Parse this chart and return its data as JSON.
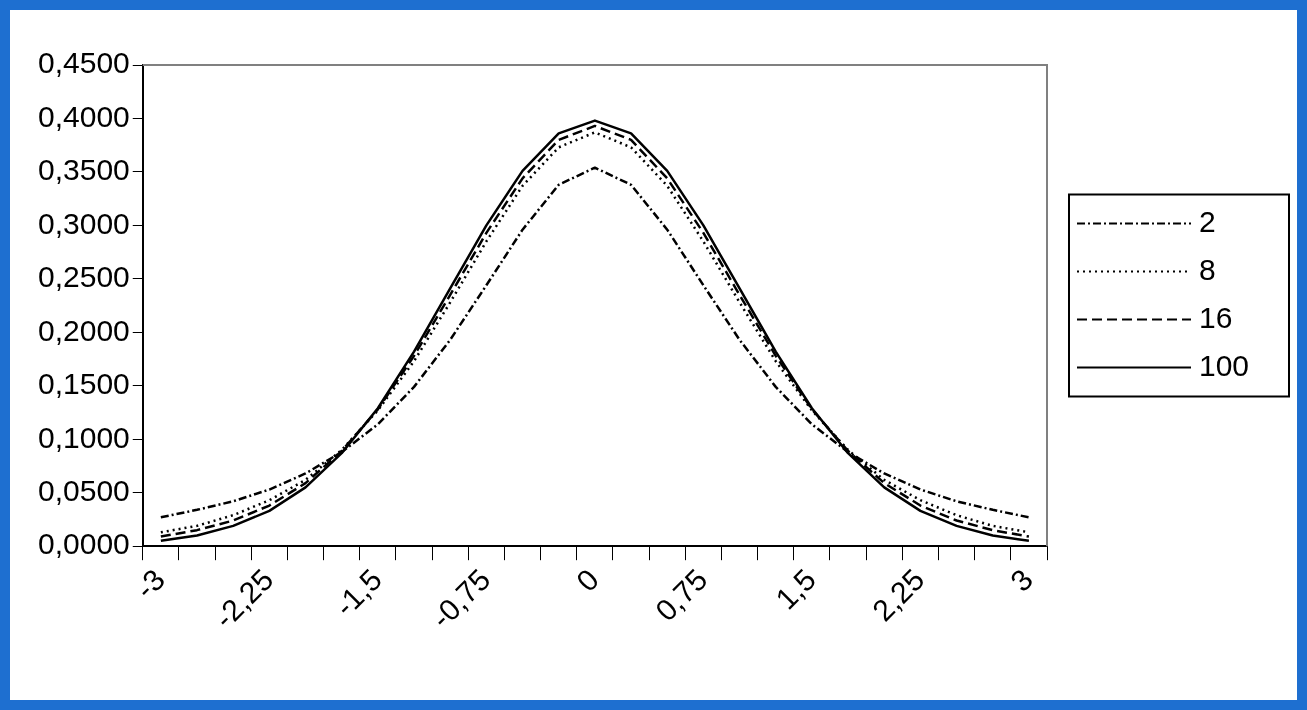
{
  "chart_data": {
    "type": "line",
    "categories": [
      "-3",
      null,
      null,
      "-2,25",
      null,
      null,
      "-1,5",
      null,
      null,
      "-0,75",
      null,
      null,
      "0",
      null,
      null,
      "0,75",
      null,
      null,
      "1,5",
      null,
      null,
      "2,25",
      null,
      null,
      "3"
    ],
    "series": [
      {
        "name": "2",
        "color": "#000000",
        "line_style": "dashdot",
        "values": [
          0.027,
          0.034,
          0.042,
          0.053,
          0.068,
          0.088,
          0.114,
          0.149,
          0.193,
          0.244,
          0.296,
          0.338,
          0.354,
          0.338,
          0.296,
          0.244,
          0.193,
          0.149,
          0.114,
          0.088,
          0.068,
          0.053,
          0.042,
          0.034,
          0.027
        ]
      },
      {
        "name": "8",
        "color": "#000000",
        "line_style": "dotted",
        "values": [
          0.013,
          0.019,
          0.029,
          0.043,
          0.062,
          0.09,
          0.127,
          0.173,
          0.228,
          0.285,
          0.337,
          0.373,
          0.387,
          0.373,
          0.337,
          0.285,
          0.228,
          0.173,
          0.127,
          0.09,
          0.062,
          0.043,
          0.029,
          0.019,
          0.013
        ]
      },
      {
        "name": "16",
        "color": "#000000",
        "line_style": "dashed",
        "values": [
          0.009,
          0.015,
          0.024,
          0.038,
          0.059,
          0.089,
          0.128,
          0.178,
          0.235,
          0.293,
          0.344,
          0.38,
          0.393,
          0.38,
          0.344,
          0.293,
          0.235,
          0.178,
          0.128,
          0.089,
          0.059,
          0.038,
          0.024,
          0.015,
          0.009
        ]
      },
      {
        "name": "100",
        "color": "#000000",
        "line_style": "solid",
        "values": [
          0.005,
          0.01,
          0.019,
          0.033,
          0.055,
          0.087,
          0.129,
          0.182,
          0.241,
          0.3,
          0.351,
          0.386,
          0.398,
          0.386,
          0.351,
          0.3,
          0.241,
          0.182,
          0.129,
          0.087,
          0.055,
          0.033,
          0.019,
          0.01,
          0.005
        ]
      }
    ],
    "ylim": [
      0,
      0.45
    ],
    "yticks": [
      {
        "value": 0,
        "label": "0,0000"
      },
      {
        "value": 0.05,
        "label": "0,0500"
      },
      {
        "value": 0.1,
        "label": "0,1000"
      },
      {
        "value": 0.15,
        "label": "0,1500"
      },
      {
        "value": 0.2,
        "label": "0,2000"
      },
      {
        "value": 0.25,
        "label": "0,2500"
      },
      {
        "value": 0.3,
        "label": "0,3000"
      },
      {
        "value": 0.35,
        "label": "0,3500"
      },
      {
        "value": 0.4,
        "label": "0,4000"
      },
      {
        "value": 0.45,
        "label": "0,4500"
      }
    ],
    "grid": false,
    "legend": "right",
    "marker": "none"
  }
}
